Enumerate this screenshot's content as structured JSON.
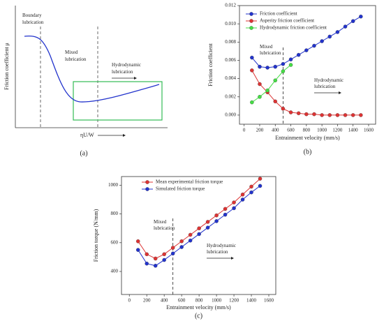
{
  "chart_data": [
    {
      "type": "schematic",
      "y_label": "Friction coefficient μ",
      "x_label": "ηU/W",
      "caption": "(a)",
      "annotations": [
        [
          "Boundary",
          "lubrication"
        ],
        [
          "Mixed",
          "lubrication"
        ],
        [
          "Hydrodynamic",
          "lubrication"
        ]
      ]
    },
    {
      "type": "line",
      "x_label": "Entrainment velocity (mm/s)",
      "y_label": "Friction coefficient",
      "caption": "(b)",
      "x": [
        100,
        200,
        300,
        400,
        500,
        600,
        700,
        800,
        900,
        1000,
        1100,
        1200,
        1300,
        1400,
        1500
      ],
      "series": [
        {
          "name": "Friction coefficient",
          "color": "#2233cc",
          "values": [
            0.0063,
            0.0053,
            0.0052,
            0.0053,
            0.0056,
            0.0061,
            0.0066,
            0.0071,
            0.0076,
            0.0081,
            0.0086,
            0.0091,
            0.0097,
            0.0103,
            0.0108
          ]
        },
        {
          "name": "Asperity friction coefficient",
          "color": "#dd3333",
          "values": [
            0.0049,
            0.0034,
            0.0025,
            0.0015,
            0.0007,
            0.0003,
            0.0002,
            0.0001,
            0.0001,
            0,
            0,
            0,
            0,
            0,
            0
          ]
        },
        {
          "name": "Hydrodynamic friction coefficient",
          "color": "#44dd44",
          "values": [
            0.0014,
            0.002,
            0.0027,
            0.0038,
            0.0048,
            0.0055,
            null,
            null,
            null,
            null,
            null,
            null,
            null,
            null,
            null
          ]
        }
      ],
      "xlim": [
        -60,
        1690
      ],
      "xticks": [
        0,
        200,
        400,
        600,
        800,
        1000,
        1200,
        1400,
        1600
      ],
      "ylim": [
        -0.001,
        0.012
      ],
      "yticks": [
        {
          "value": 0,
          "label": "0.000"
        },
        {
          "value": 0.002,
          "label": "0.002"
        },
        {
          "value": 0.004,
          "label": "0.004"
        },
        {
          "value": 0.006,
          "label": "0.006"
        },
        {
          "value": 0.008,
          "label": "0.008"
        },
        {
          "value": 0.01,
          "label": "0.010"
        },
        {
          "value": 0.012,
          "label": "0.012"
        }
      ],
      "vline": 500,
      "annotations": [
        [
          "Mixed",
          "lubrication"
        ],
        [
          "Hydrodynamic",
          "lubrication"
        ]
      ]
    },
    {
      "type": "line",
      "x_label": "Entrainment velocity (mm/s)",
      "y_label": "Friction torque (N/mm)",
      "caption": "(c)",
      "x": [
        100,
        200,
        300,
        400,
        500,
        600,
        700,
        800,
        900,
        1000,
        1100,
        1200,
        1300,
        1400,
        1500
      ],
      "series": [
        {
          "name": "Mean experimental friction torque",
          "color": "#dd3333",
          "values": [
            610,
            520,
            490,
            520,
            565,
            610,
            655,
            700,
            745,
            790,
            835,
            880,
            935,
            990,
            1045
          ]
        },
        {
          "name": "Simulated friction torque",
          "color": "#2233cc",
          "values": [
            550,
            455,
            440,
            480,
            525,
            570,
            615,
            660,
            705,
            750,
            795,
            840,
            900,
            950,
            995
          ]
        }
      ],
      "xlim": [
        -90,
        1680
      ],
      "xticks": [
        0,
        200,
        400,
        600,
        800,
        1000,
        1200,
        1400,
        1600
      ],
      "ylim": [
        240,
        1060
      ],
      "yticks": [
        400,
        600,
        800,
        1000
      ],
      "vline": 500,
      "annotations": [
        [
          "Mixed",
          "lubrication"
        ],
        [
          "Hydrodynamic",
          "lubrication"
        ]
      ]
    }
  ]
}
